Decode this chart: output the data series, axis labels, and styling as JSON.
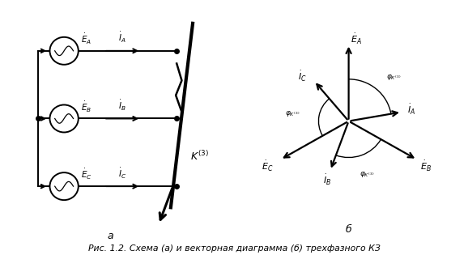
{
  "bg_color": "#ffffff",
  "line_color": "#000000",
  "fig_width": 5.78,
  "fig_height": 3.15,
  "caption": "Рис. 1.2. Схема (а) и векторная диаграмма (б) трехфазного КЗ",
  "label_a": "а",
  "label_b": "б",
  "E_angles": [
    90,
    -30,
    210
  ],
  "I_angles": [
    0,
    -90,
    150
  ],
  "E_mag": 1.1,
  "I_mag": 0.75,
  "phi_k": 30
}
